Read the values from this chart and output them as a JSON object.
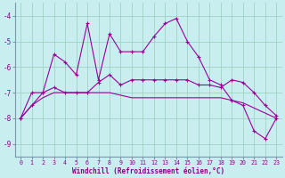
{
  "xlabel": "Windchill (Refroidissement éolien,°C)",
  "background_color": "#c8eef0",
  "grid_color": "#99ccbb",
  "line_color": "#990099",
  "x_hours": [
    0,
    1,
    2,
    3,
    4,
    5,
    6,
    7,
    8,
    9,
    10,
    11,
    12,
    13,
    14,
    15,
    16,
    17,
    18,
    19,
    20,
    21,
    22,
    23
  ],
  "series1": [
    -8.0,
    -7.5,
    -7.0,
    -5.5,
    -5.8,
    -6.3,
    -4.3,
    -6.5,
    -4.7,
    -5.4,
    -5.4,
    -5.4,
    -4.8,
    -4.3,
    -4.1,
    -5.0,
    -5.6,
    -6.5,
    -6.7,
    -7.3,
    -7.5,
    -8.5,
    -8.8,
    -8.0
  ],
  "series2": [
    -8.0,
    -7.0,
    -7.0,
    -6.8,
    -7.0,
    -7.0,
    -7.0,
    -6.6,
    -6.3,
    -6.7,
    -6.5,
    -6.5,
    -6.5,
    -6.5,
    -6.5,
    -6.5,
    -6.7,
    -6.7,
    -6.8,
    -6.5,
    -6.6,
    -7.0,
    -7.5,
    -7.9
  ],
  "series3": [
    -8.0,
    -7.5,
    -7.2,
    -7.0,
    -7.0,
    -7.0,
    -7.0,
    -7.0,
    -7.0,
    -7.1,
    -7.2,
    -7.2,
    -7.2,
    -7.2,
    -7.2,
    -7.2,
    -7.2,
    -7.2,
    -7.2,
    -7.3,
    -7.4,
    -7.6,
    -7.8,
    -8.0
  ],
  "ylim": [
    -9.5,
    -3.5
  ],
  "yticks": [
    -9,
    -8,
    -7,
    -6,
    -5,
    -4
  ],
  "xlim": [
    -0.5,
    23.5
  ],
  "text_color": "#880088",
  "spine_color": "#7799aa"
}
